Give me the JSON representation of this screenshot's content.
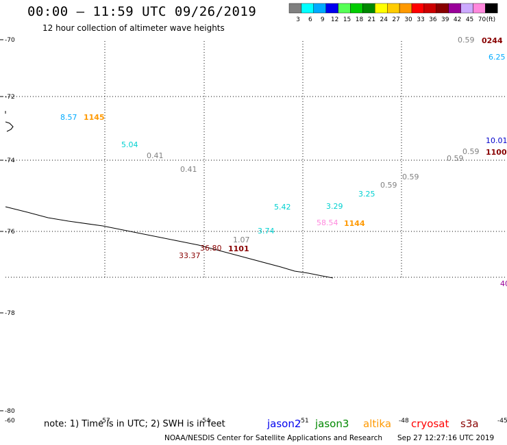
{
  "header": {
    "title": "00:00 – 11:59 UTC 09/26/2019",
    "subtitle": "12 hour collection of altimeter wave heights"
  },
  "legend": {
    "unit": "(ft)",
    "bins": [
      {
        "label": "3",
        "color": "#808080"
      },
      {
        "label": "6",
        "color": "#00ffff"
      },
      {
        "label": "9",
        "color": "#00aaff"
      },
      {
        "label": "12",
        "color": "#0000ee"
      },
      {
        "label": "15",
        "color": "#55ff55"
      },
      {
        "label": "18",
        "color": "#00cc00"
      },
      {
        "label": "21",
        "color": "#008800"
      },
      {
        "label": "24",
        "color": "#ffff00"
      },
      {
        "label": "27",
        "color": "#ffcc00"
      },
      {
        "label": "30",
        "color": "#ff9900"
      },
      {
        "label": "33",
        "color": "#ff0000"
      },
      {
        "label": "36",
        "color": "#cc0000"
      },
      {
        "label": "39",
        "color": "#880000"
      },
      {
        "label": "42",
        "color": "#990099"
      },
      {
        "label": "45",
        "color": "#ccaaff"
      },
      {
        "label": "70",
        "color": "#ff88dd"
      },
      {
        "label": "",
        "color": "#000000"
      }
    ]
  },
  "axes": {
    "lat_labels": [
      "-70",
      "-72",
      "-74",
      "-76",
      "-78",
      "-80",
      "-60"
    ],
    "lon_labels": [
      "-57",
      "-54",
      "-51",
      "-48",
      "-45"
    ]
  },
  "observations": [
    {
      "text": "0.59",
      "color": "#808080"
    },
    {
      "text": "0244",
      "color": "#880000"
    },
    {
      "text": "6.25",
      "color": "#00aaff"
    },
    {
      "text": "8.57",
      "color": "#00aaff"
    },
    {
      "text": "1145",
      "color": "#ff9900"
    },
    {
      "text": "5.04",
      "color": "#00d0d0"
    },
    {
      "text": "0.41",
      "color": "#808080"
    },
    {
      "text": "0.41",
      "color": "#808080"
    },
    {
      "text": "10.01",
      "color": "#0000cc"
    },
    {
      "text": "1100",
      "color": "#880000"
    },
    {
      "text": "0.59",
      "color": "#808080"
    },
    {
      "text": "0.59",
      "color": "#808080"
    },
    {
      "text": "0.59",
      "color": "#808080"
    },
    {
      "text": "0.59",
      "color": "#808080"
    },
    {
      "text": "3.25",
      "color": "#00d0d0"
    },
    {
      "text": "3.29",
      "color": "#00d0d0"
    },
    {
      "text": "5.42",
      "color": "#00d0d0"
    },
    {
      "text": "58.54",
      "color": "#ff88dd"
    },
    {
      "text": "1144",
      "color": "#ff9900"
    },
    {
      "text": "3.74",
      "color": "#00d0d0"
    },
    {
      "text": "1.07",
      "color": "#808080"
    },
    {
      "text": "36.80",
      "color": "#880000"
    },
    {
      "text": "1101",
      "color": "#880000"
    },
    {
      "text": "33.37",
      "color": "#880000"
    },
    {
      "text": "40",
      "color": "#990099"
    }
  ],
  "footer": {
    "note": "note: 1) Time is in UTC; 2) SWH is in feet",
    "satellites": [
      {
        "name": "jason2",
        "color": "#0000ee"
      },
      {
        "name": "jason3",
        "color": "#008800"
      },
      {
        "name": "altika",
        "color": "#ff9900"
      },
      {
        "name": "cryosat",
        "color": "#ff0000"
      },
      {
        "name": "s3a",
        "color": "#880000"
      }
    ],
    "credit": "NOAA/NESDIS Center for Satellite Applications and Research",
    "timestamp": "Sep 27 12:27:16 UTC 2019"
  }
}
